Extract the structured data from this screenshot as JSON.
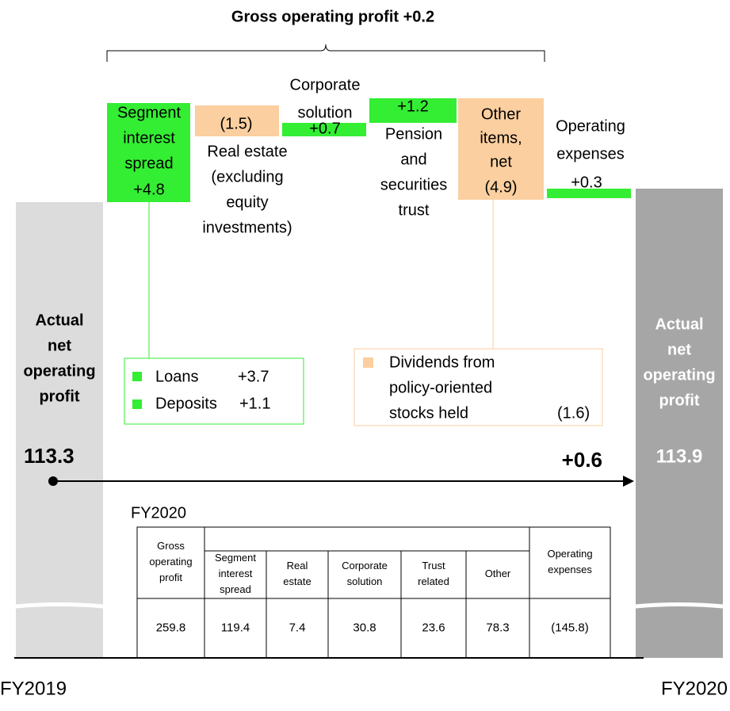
{
  "title": "Gross operating profit +0.2",
  "start": {
    "label": [
      "Actual",
      "net",
      "operating",
      "profit"
    ],
    "value": "113.3",
    "period": "FY2019"
  },
  "end": {
    "label": [
      "Actual",
      "net",
      "operating",
      "profit"
    ],
    "value": "113.9",
    "period": "FY2020"
  },
  "change": "+0.6",
  "steps": [
    {
      "label": [
        "Segment",
        "interest",
        "spread"
      ],
      "value": "+4.8"
    },
    {
      "label": [
        "Real estate",
        "(excluding",
        "equity",
        "investments)"
      ],
      "value": "(1.5)"
    },
    {
      "label": [
        "Corporate",
        "solution"
      ],
      "value": "+0.7"
    },
    {
      "label": [
        "Pension",
        "and",
        "securities",
        "trust"
      ],
      "value": "+1.2"
    },
    {
      "label": [
        "Other",
        "items,",
        "net"
      ],
      "value": "(4.9)"
    },
    {
      "label": [
        "Operating",
        "expenses"
      ],
      "value": "+0.3"
    }
  ],
  "callouts": [
    {
      "items": [
        {
          "name": "Loans",
          "value": "+3.7"
        },
        {
          "name": "Deposits",
          "value": "+1.1"
        }
      ]
    },
    {
      "lines": [
        "Dividends from",
        "policy-oriented",
        "stocks held"
      ],
      "value": "(1.6)"
    }
  ],
  "table": {
    "caption": "FY2020",
    "header": [
      "Gross operating profit",
      "Segment interest spread",
      "Real estate",
      "Corporate solution",
      "Trust related",
      "Other",
      "Operating expenses"
    ],
    "row": [
      "259.8",
      "119.4",
      "7.4",
      "30.8",
      "23.6",
      "78.3",
      "(145.8)"
    ]
  }
}
